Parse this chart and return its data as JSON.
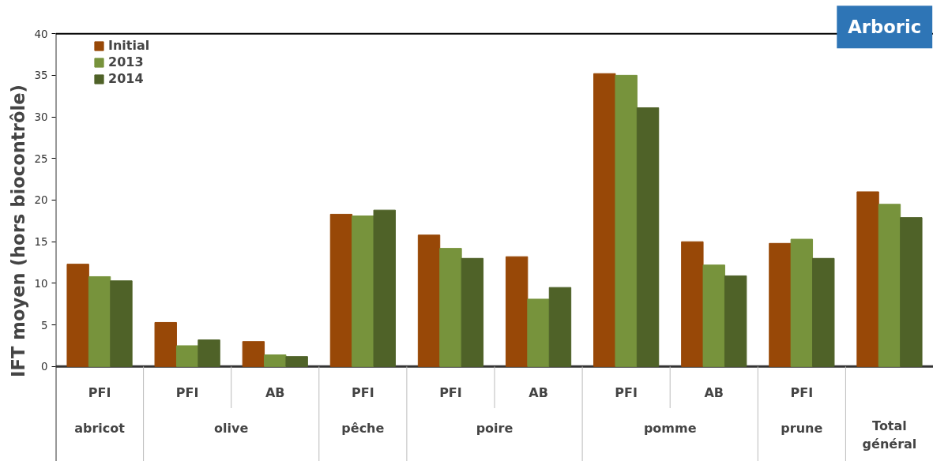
{
  "chart_data": {
    "type": "bar",
    "ylabel": "IFT moyen (hors biocontrôle)",
    "categories": [
      "PFI",
      "PFI",
      "AB",
      "PFI",
      "PFI",
      "AB",
      "PFI",
      "AB",
      "PFI",
      null
    ],
    "series": [
      {
        "name": "Initial",
        "color": "#984807",
        "values": [
          12.3,
          5.3,
          3.0,
          18.3,
          15.8,
          13.2,
          35.2,
          15.0,
          14.8,
          21.0
        ]
      },
      {
        "name": "2013",
        "color": "#77933c",
        "values": [
          10.8,
          2.5,
          1.4,
          18.1,
          14.2,
          8.1,
          35.0,
          12.2,
          15.3,
          19.5
        ]
      },
      {
        "name": "2014",
        "color": "#4f6228",
        "values": [
          10.3,
          3.2,
          1.2,
          18.8,
          13.0,
          9.5,
          31.1,
          10.9,
          13.0,
          17.9
        ]
      }
    ],
    "ylim": [
      0,
      40
    ],
    "yticks": [
      0,
      5,
      10,
      15,
      20,
      25,
      30,
      35,
      40
    ],
    "grid": false,
    "legend": "top left",
    "annotations": [
      "abricot",
      "olive",
      "pêche",
      "poire",
      "pomme",
      "prune",
      "Total général",
      "Arboric"
    ]
  }
}
